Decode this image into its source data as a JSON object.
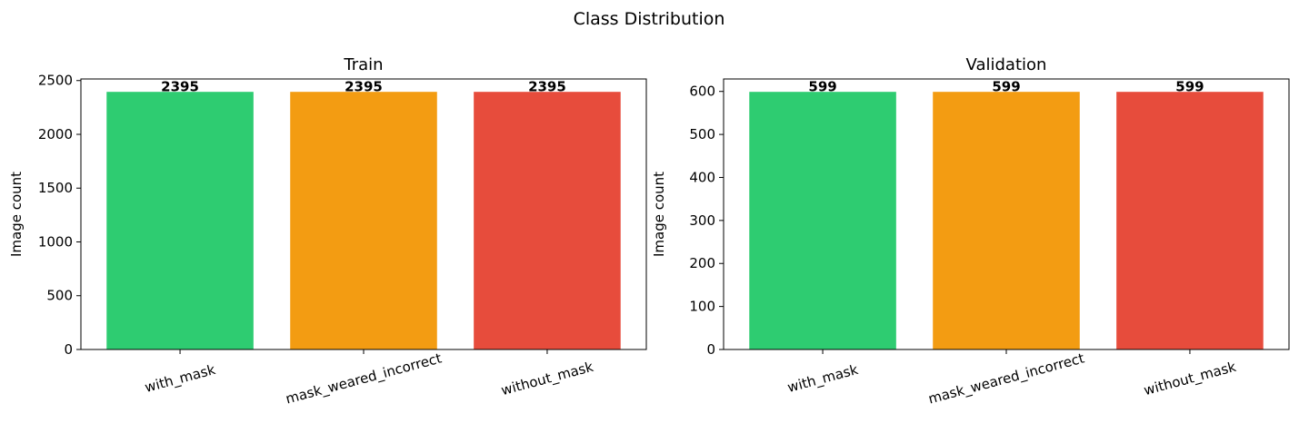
{
  "figure": {
    "title": "Class Distribution"
  },
  "chart_data": [
    {
      "type": "bar",
      "title": "Train",
      "xlabel": "",
      "ylabel": "Image count",
      "categories": [
        "with_mask",
        "mask_weared_incorrect",
        "without_mask"
      ],
      "values": [
        2395,
        2395,
        2395
      ],
      "colors": [
        "#2ecc71",
        "#f39c12",
        "#e74c3c"
      ],
      "ylim": [
        0,
        2514.75
      ],
      "yticks": [
        0,
        500,
        1000,
        1500,
        2000,
        2500
      ],
      "data_labels": [
        "2395",
        "2395",
        "2395"
      ],
      "xtick_rotation_deg": 15,
      "grid": false,
      "legend": "none"
    },
    {
      "type": "bar",
      "title": "Validation",
      "xlabel": "",
      "ylabel": "Image count",
      "categories": [
        "with_mask",
        "mask_weared_incorrect",
        "without_mask"
      ],
      "values": [
        599,
        599,
        599
      ],
      "colors": [
        "#2ecc71",
        "#f39c12",
        "#e74c3c"
      ],
      "ylim": [
        0,
        628.95
      ],
      "yticks": [
        0,
        100,
        200,
        300,
        400,
        500,
        600
      ],
      "data_labels": [
        "599",
        "599",
        "599"
      ],
      "xtick_rotation_deg": 15,
      "grid": false,
      "legend": "none"
    }
  ]
}
